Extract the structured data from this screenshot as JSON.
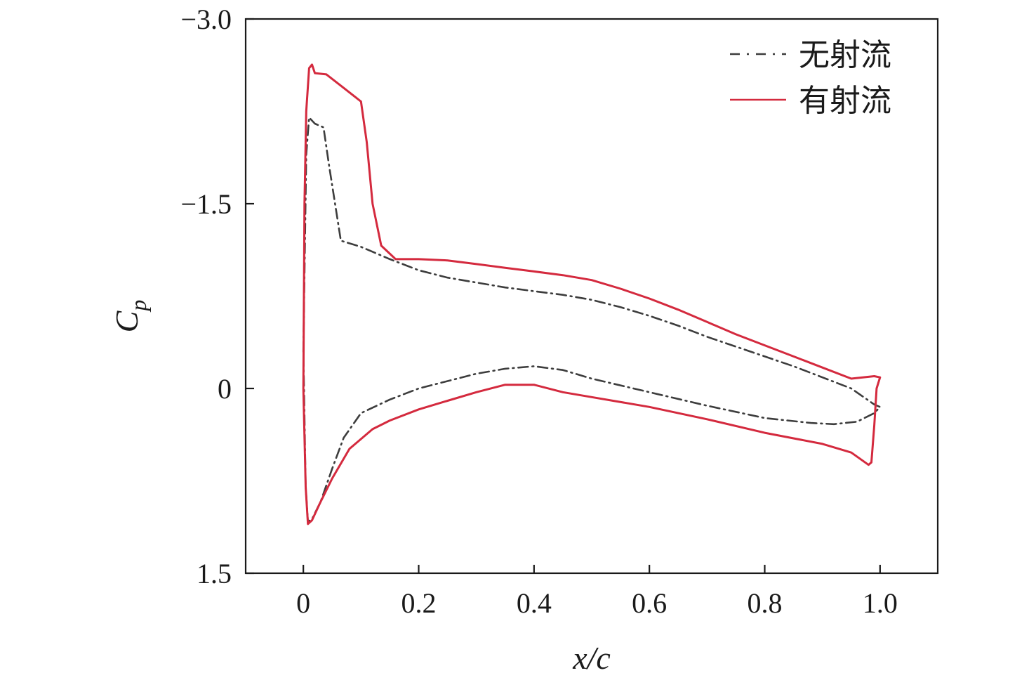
{
  "chart_data": {
    "type": "line",
    "xlabel": "x/c",
    "ylabel": "Cp",
    "ylabel_main": "C",
    "ylabel_sub": "p",
    "xlim": [
      -0.1,
      1.1
    ],
    "ylim": [
      1.5,
      -3.0
    ],
    "y_inverted": true,
    "grid": false,
    "legend_position": "top-right",
    "x_ticks": [
      {
        "value": 0,
        "label": "0"
      },
      {
        "value": 0.2,
        "label": "0.2"
      },
      {
        "value": 0.4,
        "label": "0.4"
      },
      {
        "value": 0.6,
        "label": "0.6"
      },
      {
        "value": 0.8,
        "label": "0.8"
      },
      {
        "value": 1.0,
        "label": "1.0"
      }
    ],
    "y_ticks": [
      {
        "value": -3.0,
        "label": "−3.0"
      },
      {
        "value": -1.5,
        "label": "−1.5"
      },
      {
        "value": 0,
        "label": "0"
      },
      {
        "value": 1.5,
        "label": "1.5"
      }
    ],
    "series": [
      {
        "name": "无射流",
        "color": "#3d3d3d",
        "style": "dashdot",
        "points": [
          [
            0.0,
            -0.3
          ],
          [
            0.005,
            -1.9
          ],
          [
            0.01,
            -2.2
          ],
          [
            0.02,
            -2.15
          ],
          [
            0.035,
            -2.12
          ],
          [
            0.045,
            -1.8
          ],
          [
            0.06,
            -1.35
          ],
          [
            0.065,
            -1.2
          ],
          [
            0.1,
            -1.15
          ],
          [
            0.15,
            -1.05
          ],
          [
            0.2,
            -0.96
          ],
          [
            0.25,
            -0.9
          ],
          [
            0.3,
            -0.86
          ],
          [
            0.35,
            -0.82
          ],
          [
            0.4,
            -0.79
          ],
          [
            0.45,
            -0.76
          ],
          [
            0.5,
            -0.72
          ],
          [
            0.55,
            -0.66
          ],
          [
            0.6,
            -0.59
          ],
          [
            0.65,
            -0.51
          ],
          [
            0.7,
            -0.42
          ],
          [
            0.75,
            -0.34
          ],
          [
            0.8,
            -0.26
          ],
          [
            0.85,
            -0.18
          ],
          [
            0.9,
            -0.09
          ],
          [
            0.95,
            0.0
          ],
          [
            0.99,
            0.13
          ],
          [
            1.0,
            0.15
          ],
          [
            0.99,
            0.2
          ],
          [
            0.96,
            0.27
          ],
          [
            0.92,
            0.29
          ],
          [
            0.88,
            0.28
          ],
          [
            0.8,
            0.24
          ],
          [
            0.7,
            0.14
          ],
          [
            0.6,
            0.03
          ],
          [
            0.5,
            -0.08
          ],
          [
            0.45,
            -0.15
          ],
          [
            0.4,
            -0.18
          ],
          [
            0.35,
            -0.16
          ],
          [
            0.3,
            -0.12
          ],
          [
            0.25,
            -0.06
          ],
          [
            0.2,
            0.0
          ],
          [
            0.15,
            0.09
          ],
          [
            0.1,
            0.2
          ],
          [
            0.07,
            0.4
          ],
          [
            0.05,
            0.65
          ],
          [
            0.03,
            0.92
          ],
          [
            0.015,
            1.06
          ],
          [
            0.008,
            1.08
          ],
          [
            0.004,
            0.8
          ],
          [
            0.0,
            -0.3
          ]
        ]
      },
      {
        "name": "有射流",
        "color": "#d42a3e",
        "style": "solid",
        "points": [
          [
            0.0,
            0.0
          ],
          [
            0.002,
            -1.5
          ],
          [
            0.005,
            -2.25
          ],
          [
            0.01,
            -2.6
          ],
          [
            0.015,
            -2.63
          ],
          [
            0.02,
            -2.56
          ],
          [
            0.04,
            -2.55
          ],
          [
            0.07,
            -2.44
          ],
          [
            0.1,
            -2.33
          ],
          [
            0.11,
            -2.0
          ],
          [
            0.12,
            -1.5
          ],
          [
            0.135,
            -1.16
          ],
          [
            0.16,
            -1.05
          ],
          [
            0.2,
            -1.05
          ],
          [
            0.25,
            -1.04
          ],
          [
            0.3,
            -1.01
          ],
          [
            0.35,
            -0.98
          ],
          [
            0.4,
            -0.95
          ],
          [
            0.45,
            -0.92
          ],
          [
            0.5,
            -0.88
          ],
          [
            0.55,
            -0.81
          ],
          [
            0.6,
            -0.73
          ],
          [
            0.65,
            -0.64
          ],
          [
            0.7,
            -0.54
          ],
          [
            0.75,
            -0.44
          ],
          [
            0.8,
            -0.35
          ],
          [
            0.85,
            -0.26
          ],
          [
            0.9,
            -0.17
          ],
          [
            0.95,
            -0.08
          ],
          [
            0.99,
            -0.1
          ],
          [
            1.0,
            -0.09
          ],
          [
            0.994,
            0.0
          ],
          [
            0.99,
            0.3
          ],
          [
            0.985,
            0.6
          ],
          [
            0.98,
            0.62
          ],
          [
            0.95,
            0.52
          ],
          [
            0.9,
            0.45
          ],
          [
            0.8,
            0.36
          ],
          [
            0.7,
            0.25
          ],
          [
            0.6,
            0.15
          ],
          [
            0.5,
            0.07
          ],
          [
            0.45,
            0.03
          ],
          [
            0.4,
            -0.03
          ],
          [
            0.35,
            -0.03
          ],
          [
            0.3,
            0.03
          ],
          [
            0.25,
            0.1
          ],
          [
            0.2,
            0.17
          ],
          [
            0.15,
            0.26
          ],
          [
            0.12,
            0.33
          ],
          [
            0.08,
            0.49
          ],
          [
            0.05,
            0.73
          ],
          [
            0.03,
            0.92
          ],
          [
            0.015,
            1.07
          ],
          [
            0.008,
            1.1
          ],
          [
            0.004,
            0.8
          ],
          [
            0.0,
            0.0
          ]
        ]
      }
    ]
  }
}
